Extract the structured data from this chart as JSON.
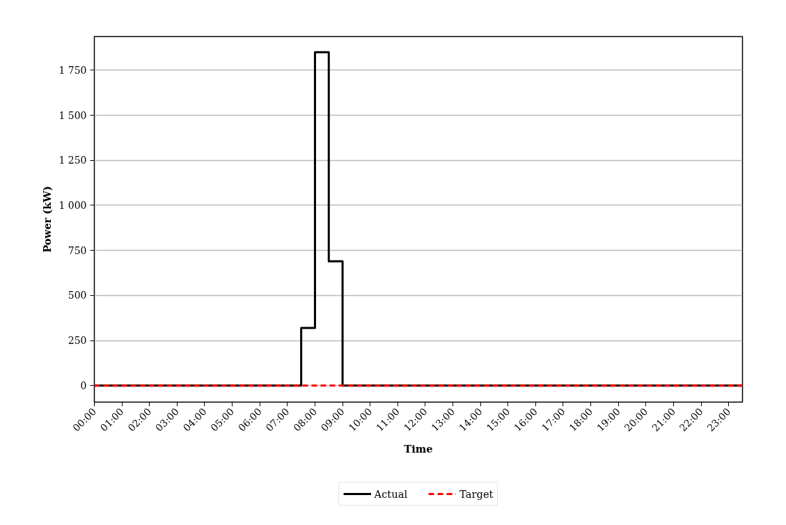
{
  "chart_data": {
    "type": "step",
    "xlabel": "Time",
    "ylabel": "Power (kW)",
    "xlim": [
      0,
      23.5
    ],
    "ylim": [
      -92,
      1937
    ],
    "xticks": [
      {
        "value": 0,
        "label": "00:00"
      },
      {
        "value": 1,
        "label": "01:00"
      },
      {
        "value": 2,
        "label": "02:00"
      },
      {
        "value": 3,
        "label": "03:00"
      },
      {
        "value": 4,
        "label": "04:00"
      },
      {
        "value": 5,
        "label": "05:00"
      },
      {
        "value": 6,
        "label": "06:00"
      },
      {
        "value": 7,
        "label": "07:00"
      },
      {
        "value": 8,
        "label": "08:00"
      },
      {
        "value": 9,
        "label": "09:00"
      },
      {
        "value": 10,
        "label": "10:00"
      },
      {
        "value": 11,
        "label": "11:00"
      },
      {
        "value": 12,
        "label": "12:00"
      },
      {
        "value": 13,
        "label": "13:00"
      },
      {
        "value": 14,
        "label": "14:00"
      },
      {
        "value": 15,
        "label": "15:00"
      },
      {
        "value": 16,
        "label": "16:00"
      },
      {
        "value": 17,
        "label": "17:00"
      },
      {
        "value": 18,
        "label": "18:00"
      },
      {
        "value": 19,
        "label": "19:00"
      },
      {
        "value": 20,
        "label": "20:00"
      },
      {
        "value": 21,
        "label": "21:00"
      },
      {
        "value": 22,
        "label": "22:00"
      },
      {
        "value": 23,
        "label": "23:00"
      }
    ],
    "yticks": [
      0,
      250,
      500,
      750,
      {
        "value": 1000,
        "label": "1 000"
      },
      {
        "value": 1250,
        "label": "1 250"
      },
      {
        "value": 1500,
        "label": "1 500"
      },
      {
        "value": 1750,
        "label": "1 750"
      }
    ],
    "grid": "y",
    "legend": "bottom",
    "series": [
      {
        "name": "Actual",
        "color": "#000000",
        "line_style": "solid",
        "x": [
          0,
          7.5,
          8,
          8.5,
          9,
          23.5
        ],
        "values": [
          0,
          320,
          1850,
          690,
          0,
          0
        ]
      },
      {
        "name": "Target",
        "type": "line",
        "color": "#ff0000",
        "line_style": "dashed",
        "x": [
          0,
          23.5
        ],
        "values": [
          0,
          0
        ]
      }
    ]
  }
}
